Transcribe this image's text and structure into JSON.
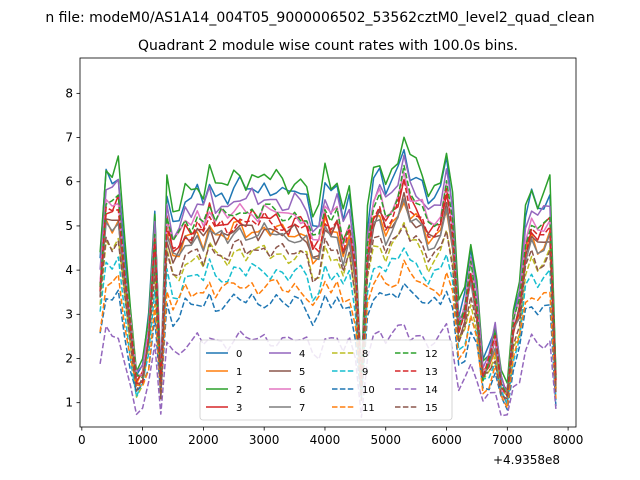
{
  "chart_data": {
    "type": "line",
    "suptitle": "n file: modeM0/AS1A14_004T05_9000006502_53562cztM0_level2_quad_clean",
    "title": "Quadrant 2 module wise count rates with 100.0s bins.",
    "xlabel": "",
    "ylabel": "",
    "x_offset_label": "+4.9358e8",
    "xlim": [
      -30,
      8130
    ],
    "ylim": [
      0.45,
      8.8
    ],
    "x_ticks": [
      0,
      1000,
      2000,
      3000,
      4000,
      5000,
      6000,
      7000,
      8000
    ],
    "y_ticks": [
      1,
      2,
      3,
      4,
      5,
      6,
      7,
      8
    ],
    "grid": false,
    "legend": {
      "location": "lower center",
      "columns": 4
    },
    "x": [
      300,
      400,
      500,
      600,
      700,
      800,
      900,
      1000,
      1100,
      1200,
      1300,
      1400,
      1500,
      1600,
      1700,
      1800,
      1900,
      2000,
      2100,
      2200,
      2300,
      2400,
      2500,
      2600,
      2700,
      2800,
      2900,
      3000,
      3100,
      3200,
      3300,
      3400,
      3500,
      3600,
      3700,
      3800,
      3900,
      4000,
      4100,
      4200,
      4300,
      4400,
      4500,
      4600,
      4700,
      4800,
      4900,
      5000,
      5100,
      5200,
      5300,
      5400,
      5500,
      5600,
      5700,
      5800,
      5900,
      6000,
      6100,
      6200,
      6300,
      6400,
      6500,
      6600,
      6700,
      6800,
      6900,
      7000,
      7100,
      7200,
      7300,
      7400,
      7500,
      7600,
      7700,
      7800
    ],
    "base_shape": [
      0.55,
      0.88,
      0.86,
      0.9,
      0.6,
      0.35,
      0.12,
      0.15,
      0.32,
      0.73,
      0.1,
      0.82,
      0.7,
      0.72,
      0.8,
      0.78,
      0.82,
      0.78,
      0.87,
      0.8,
      0.82,
      0.8,
      0.84,
      0.85,
      0.82,
      0.85,
      0.82,
      0.85,
      0.83,
      0.84,
      0.82,
      0.8,
      0.83,
      0.82,
      0.8,
      0.7,
      0.72,
      0.86,
      0.8,
      0.84,
      0.72,
      0.8,
      0.6,
      0.1,
      0.7,
      0.86,
      0.9,
      0.82,
      0.86,
      0.9,
      1.0,
      0.9,
      0.88,
      0.85,
      0.78,
      0.8,
      0.82,
      0.95,
      0.78,
      0.35,
      0.42,
      0.6,
      0.45,
      0.15,
      0.2,
      0.3,
      0.1,
      0.05,
      0.35,
      0.45,
      0.72,
      0.8,
      0.75,
      0.78,
      0.82,
      0.1
    ],
    "series": [
      {
        "name": "0",
        "color": "#1f77b4",
        "dash": "solid",
        "level": 6.8,
        "floor": 1.0
      },
      {
        "name": "1",
        "color": "#ff7f0e",
        "dash": "solid",
        "level": 5.7,
        "floor": 0.9
      },
      {
        "name": "2",
        "color": "#2ca02c",
        "dash": "solid",
        "level": 7.1,
        "floor": 1.0
      },
      {
        "name": "3",
        "color": "#d62728",
        "dash": "solid",
        "level": 6.0,
        "floor": 0.9
      },
      {
        "name": "4",
        "color": "#9467bd",
        "dash": "solid",
        "level": 6.5,
        "floor": 1.0
      },
      {
        "name": "5",
        "color": "#8c564b",
        "dash": "solid",
        "level": 5.7,
        "floor": 0.9
      },
      {
        "name": "6",
        "color": "#e377c2",
        "dash": "solid",
        "level": 6.2,
        "floor": 0.9
      },
      {
        "name": "7",
        "color": "#7f7f7f",
        "dash": "solid",
        "level": 5.6,
        "floor": 0.9
      },
      {
        "name": "8",
        "color": "#bcbd22",
        "dash": "dashed",
        "level": 5.1,
        "floor": 0.8
      },
      {
        "name": "9",
        "color": "#17becf",
        "dash": "dashed",
        "level": 4.6,
        "floor": 0.8
      },
      {
        "name": "10",
        "color": "#1f77b4",
        "dash": "dashed",
        "level": 3.8,
        "floor": 0.8
      },
      {
        "name": "11",
        "color": "#ff7f0e",
        "dash": "dashed",
        "level": 4.2,
        "floor": 0.8
      },
      {
        "name": "12",
        "color": "#2ca02c",
        "dash": "dashed",
        "level": 6.2,
        "floor": 0.9
      },
      {
        "name": "13",
        "color": "#d62728",
        "dash": "dashed",
        "level": 5.9,
        "floor": 0.9
      },
      {
        "name": "14",
        "color": "#9467bd",
        "dash": "dashed",
        "level": 2.8,
        "floor": 0.6
      },
      {
        "name": "15",
        "color": "#8c564b",
        "dash": "dashed",
        "level": 5.2,
        "floor": 0.8
      }
    ]
  }
}
